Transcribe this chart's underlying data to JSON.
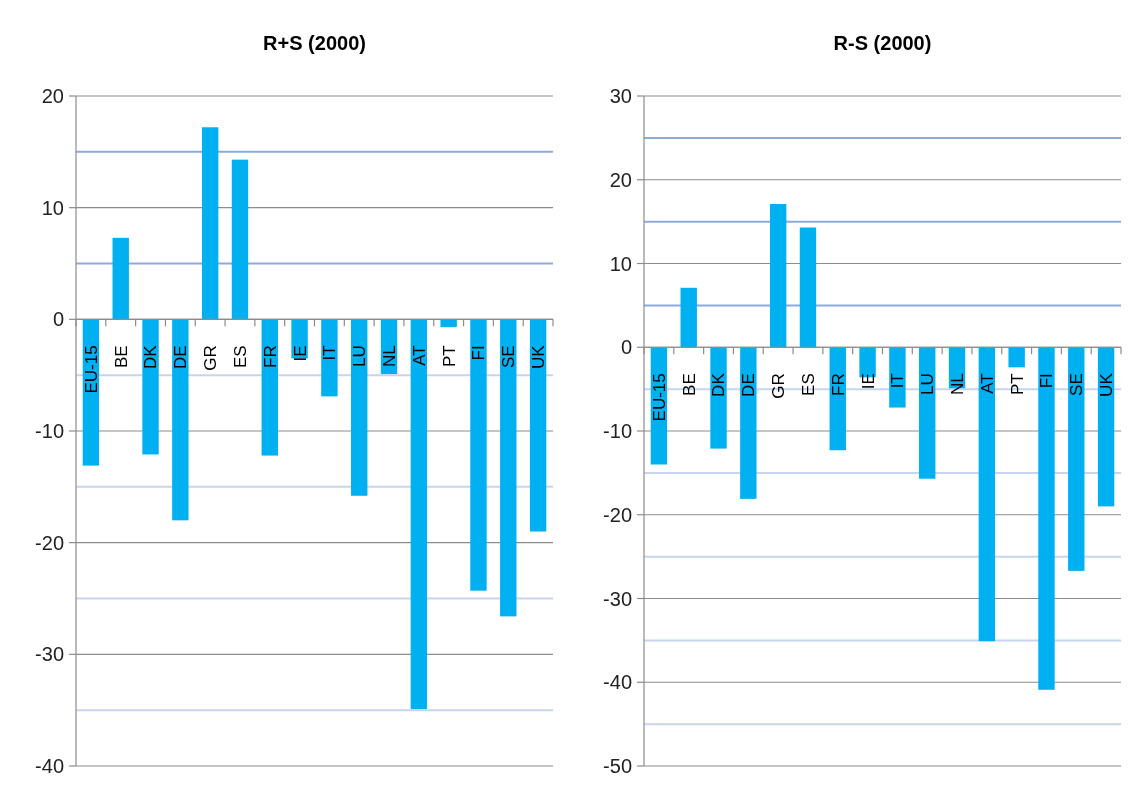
{
  "chart_data": [
    {
      "type": "bar",
      "title": "R+S (2000)",
      "categories": [
        "EU-15",
        "BE",
        "DK",
        "DE",
        "GR",
        "ES",
        "FR",
        "IE",
        "IT",
        "LU",
        "NL",
        "AT",
        "PT",
        "FI",
        "SE",
        "UK"
      ],
      "values": [
        -13.1,
        7.3,
        -12.1,
        -18.0,
        17.2,
        14.3,
        -12.2,
        -3.5,
        -6.9,
        -15.8,
        -4.9,
        -34.9,
        -0.7,
        -24.3,
        -26.6,
        -19.0
      ],
      "color": "#00b0f0",
      "ylim": [
        -40,
        20
      ],
      "yticks": [
        -40,
        {
          "value": -35,
          "label": null
        },
        -30,
        {
          "value": -25,
          "label": null
        },
        -20,
        {
          "value": -15,
          "label": null
        },
        -10,
        {
          "value": -5,
          "label": null
        },
        0,
        {
          "value": 5,
          "label": null
        },
        10,
        {
          "value": 15,
          "label": null
        },
        20
      ],
      "grid": true
    },
    {
      "type": "bar",
      "title": "R-S (2000)",
      "categories": [
        "EU-15",
        "BE",
        "DK",
        "DE",
        "GR",
        "ES",
        "FR",
        "IE",
        "IT",
        "LU",
        "NL",
        "AT",
        "PT",
        "FI",
        "SE",
        "UK"
      ],
      "values": [
        -14.0,
        7.1,
        -12.1,
        -18.1,
        17.1,
        14.3,
        -12.3,
        -3.6,
        -7.2,
        -15.7,
        -4.9,
        -35.1,
        -2.4,
        -40.9,
        -26.7,
        -19.0
      ],
      "color": "#00b0f0",
      "ylim": [
        -50,
        30
      ],
      "yticks": [
        -50,
        {
          "value": -45,
          "label": null
        },
        -40,
        {
          "value": -35,
          "label": null
        },
        -30,
        {
          "value": -25,
          "label": null
        },
        -20,
        {
          "value": -15,
          "label": null
        },
        -10,
        {
          "value": -5,
          "label": null
        },
        0,
        {
          "value": 5,
          "label": null
        },
        10,
        {
          "value": 15,
          "label": null
        },
        20,
        {
          "value": 25,
          "label": null
        },
        30
      ],
      "grid": true
    }
  ]
}
